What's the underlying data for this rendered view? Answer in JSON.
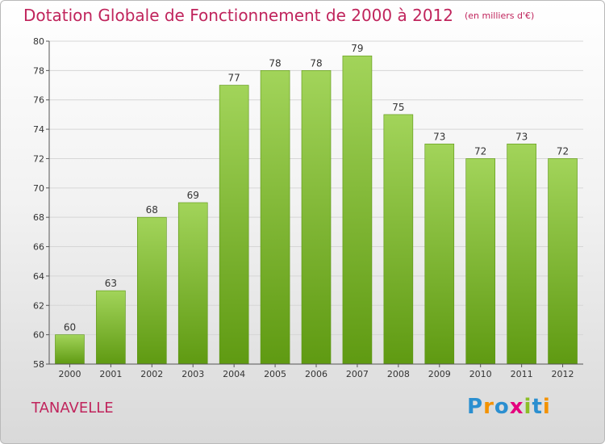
{
  "title": "Dotation Globale de Fonctionnement de 2000 à 2012",
  "subtitle": "(en milliers d'€)",
  "commune": "TANAVELLE",
  "logo": {
    "text": "Proxiti",
    "colors": [
      "#2b8fd0",
      "#f39200",
      "#2b8fd0",
      "#e5007e",
      "#8cbe27",
      "#2b8fd0",
      "#f39200"
    ]
  },
  "colors": {
    "title": "#c0245c",
    "bar_light": "#a2d45a",
    "bar_dark": "#5f9a12",
    "axis": "#555555"
  },
  "chart_data": {
    "type": "bar",
    "categories": [
      "2000",
      "2001",
      "2002",
      "2003",
      "2004",
      "2005",
      "2006",
      "2007",
      "2008",
      "2009",
      "2010",
      "2011",
      "2012"
    ],
    "values": [
      60,
      63,
      68,
      69,
      77,
      78,
      78,
      79,
      75,
      73,
      72,
      73,
      72
    ],
    "data_labels": [
      "60",
      "63",
      "68",
      "69",
      "77",
      "78",
      "78",
      "79",
      "75",
      "73",
      "72",
      "73",
      "72"
    ],
    "ylim": [
      58,
      80
    ],
    "yticks": [
      58,
      60,
      62,
      64,
      66,
      68,
      70,
      72,
      74,
      76,
      78,
      80
    ],
    "ytick_labels": [
      "58",
      "60",
      "62",
      "64",
      "66",
      "68",
      "70",
      "72",
      "74",
      "76",
      "78",
      "80"
    ],
    "grid": true
  }
}
